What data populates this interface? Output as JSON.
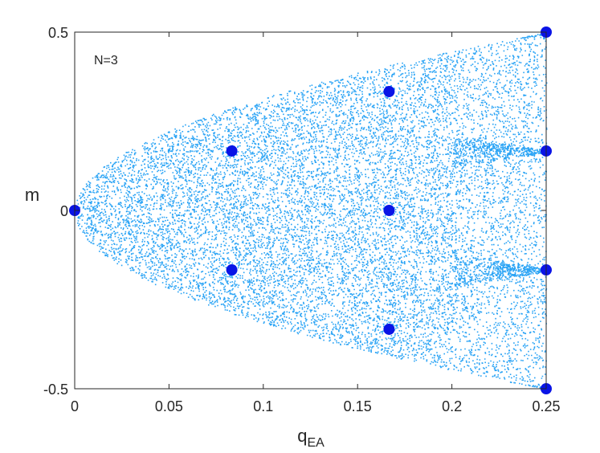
{
  "chart_data": {
    "type": "scatter",
    "annotation": "N=3",
    "xlabel_main": "q",
    "xlabel_sub": "EA",
    "ylabel": "m",
    "xlim": [
      0,
      0.25
    ],
    "ylim": [
      -0.5,
      0.5
    ],
    "xticks": [
      0,
      0.05,
      0.1,
      0.15,
      0.2,
      0.25
    ],
    "xtick_labels": [
      "0",
      "0.05",
      "0.1",
      "0.15",
      "0.2",
      "0.25"
    ],
    "yticks": [
      -0.5,
      0,
      0.5
    ],
    "ytick_labels": [
      "-0.5",
      "0",
      "0.5"
    ],
    "grid": false,
    "scatter_cloud": {
      "color": "#29a3f5",
      "approx_count": 14000,
      "description_region": "parabolic envelope |m| <= sqrt(q)"
    },
    "highlight_points": {
      "color": "#0a14e6",
      "points": [
        {
          "x": 0.0,
          "y": 0.0
        },
        {
          "x": 0.0833,
          "y": 0.1667
        },
        {
          "x": 0.0833,
          "y": -0.1667
        },
        {
          "x": 0.1667,
          "y": 0.3333
        },
        {
          "x": 0.1667,
          "y": 0.0
        },
        {
          "x": 0.1667,
          "y": -0.3333
        },
        {
          "x": 0.25,
          "y": 0.5
        },
        {
          "x": 0.25,
          "y": 0.1667
        },
        {
          "x": 0.25,
          "y": -0.1667
        },
        {
          "x": 0.25,
          "y": -0.5
        }
      ]
    }
  }
}
